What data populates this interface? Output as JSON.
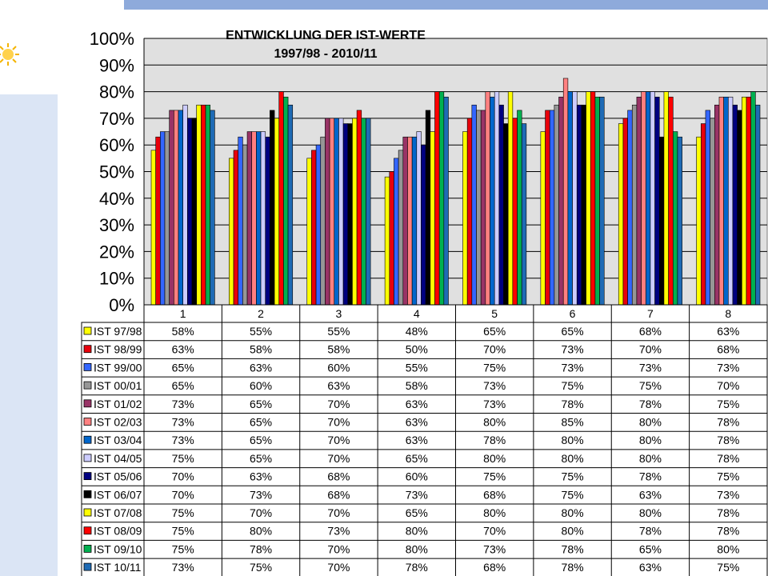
{
  "colors": {
    "band": "#8eaadb",
    "side_band": "#dbe5f5",
    "plot_bg": "#e0e0e0",
    "axis": "#000000"
  },
  "logo": {
    "icon": "sun-logo-icon"
  },
  "chart_data": {
    "type": "bar",
    "title": "ENTWICKLUNG DER IST-WERTE",
    "subtitle": "1997/98  - 2010/11",
    "categories": [
      "1",
      "2",
      "3",
      "4",
      "5",
      "6",
      "7",
      "8"
    ],
    "ylim": [
      0,
      100
    ],
    "yticks": [
      "0%",
      "10%",
      "20%",
      "30%",
      "40%",
      "50%",
      "60%",
      "70%",
      "80%",
      "90%",
      "100%"
    ],
    "grid": true,
    "legend": "data-table",
    "series": [
      {
        "name": "IST 97/98",
        "color": "#ffff00",
        "values": [
          58,
          55,
          55,
          48,
          65,
          65,
          68,
          63
        ],
        "labels": [
          "58%",
          "55%",
          "55%",
          "48%",
          "65%",
          "65%",
          "68%",
          "63%"
        ]
      },
      {
        "name": "IST 98/99",
        "color": "#e8000b",
        "values": [
          63,
          58,
          58,
          50,
          70,
          73,
          70,
          68
        ],
        "labels": [
          "63%",
          "58%",
          "58%",
          "50%",
          "70%",
          "73%",
          "70%",
          "68%"
        ]
      },
      {
        "name": "IST 99/00",
        "color": "#3366ff",
        "values": [
          65,
          63,
          60,
          55,
          75,
          73,
          73,
          73
        ],
        "labels": [
          "65%",
          "63%",
          "60%",
          "55%",
          "75%",
          "73%",
          "73%",
          "73%"
        ]
      },
      {
        "name": "IST 00/01",
        "color": "#969696",
        "values": [
          65,
          60,
          63,
          58,
          73,
          75,
          75,
          70
        ],
        "labels": [
          "65%",
          "60%",
          "63%",
          "58%",
          "73%",
          "75%",
          "75%",
          "70%"
        ]
      },
      {
        "name": "IST 01/02",
        "color": "#993366",
        "values": [
          73,
          65,
          70,
          63,
          73,
          78,
          78,
          75
        ],
        "labels": [
          "73%",
          "65%",
          "70%",
          "63%",
          "73%",
          "78%",
          "78%",
          "75%"
        ]
      },
      {
        "name": "IST 02/03",
        "color": "#ff8080",
        "values": [
          73,
          65,
          70,
          63,
          80,
          85,
          80,
          78
        ],
        "labels": [
          "73%",
          "65%",
          "70%",
          "63%",
          "80%",
          "85%",
          "80%",
          "78%"
        ]
      },
      {
        "name": "IST 03/04",
        "color": "#0066cc",
        "values": [
          73,
          65,
          70,
          63,
          78,
          80,
          80,
          78
        ],
        "labels": [
          "73%",
          "65%",
          "70%",
          "63%",
          "78%",
          "80%",
          "80%",
          "78%"
        ]
      },
      {
        "name": "IST 04/05",
        "color": "#ccccff",
        "values": [
          75,
          65,
          70,
          65,
          80,
          80,
          80,
          78
        ],
        "labels": [
          "75%",
          "65%",
          "70%",
          "65%",
          "80%",
          "80%",
          "80%",
          "78%"
        ]
      },
      {
        "name": "IST 05/06",
        "color": "#000080",
        "values": [
          70,
          63,
          68,
          60,
          75,
          75,
          78,
          75
        ],
        "labels": [
          "70%",
          "63%",
          "68%",
          "60%",
          "75%",
          "75%",
          "78%",
          "75%"
        ]
      },
      {
        "name": "IST 06/07",
        "color": "#000000",
        "values": [
          70,
          73,
          68,
          73,
          68,
          75,
          63,
          73
        ],
        "labels": [
          "70%",
          "73%",
          "68%",
          "73%",
          "68%",
          "75%",
          "63%",
          "73%"
        ]
      },
      {
        "name": "IST 07/08",
        "color": "#ffff00",
        "values": [
          75,
          70,
          70,
          65,
          80,
          80,
          80,
          78
        ],
        "labels": [
          "75%",
          "70%",
          "70%",
          "65%",
          "80%",
          "80%",
          "80%",
          "78%"
        ]
      },
      {
        "name": "IST 08/09",
        "color": "#ff0000",
        "values": [
          75,
          80,
          73,
          80,
          70,
          80,
          78,
          78
        ],
        "labels": [
          "75%",
          "80%",
          "73%",
          "80%",
          "70%",
          "80%",
          "78%",
          "78%"
        ]
      },
      {
        "name": "IST 09/10",
        "color": "#00b050",
        "values": [
          75,
          78,
          70,
          80,
          73,
          78,
          65,
          80
        ],
        "labels": [
          "75%",
          "78%",
          "70%",
          "80%",
          "73%",
          "78%",
          "65%",
          "80%"
        ]
      },
      {
        "name": "IST 10/11",
        "color": "#1f6bb5",
        "values": [
          73,
          75,
          70,
          78,
          68,
          78,
          63,
          75
        ],
        "labels": [
          "73%",
          "75%",
          "70%",
          "78%",
          "68%",
          "78%",
          "63%",
          "75%"
        ]
      }
    ]
  }
}
